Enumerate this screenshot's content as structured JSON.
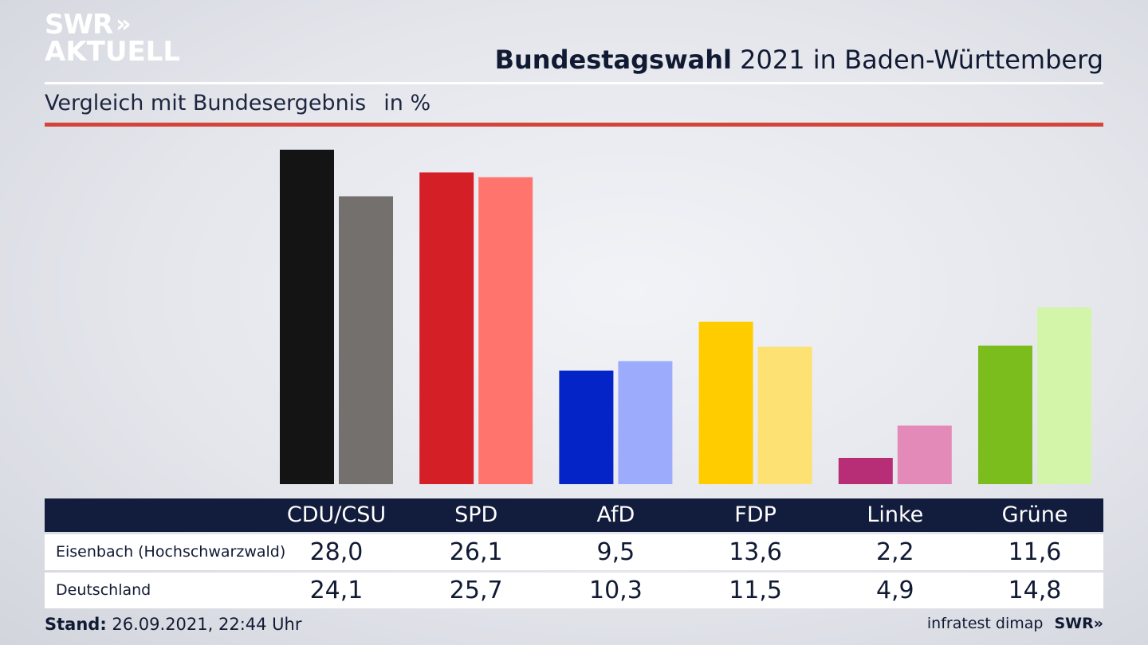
{
  "brand": {
    "line1": "SWR",
    "line2": "AKTUELL",
    "chevron": "»",
    "footer_logo": "SWR»"
  },
  "header": {
    "title_bold": "Bundestagswahl",
    "title_rest": " 2021 in Baden-Württemberg",
    "subtitle": "Vergleich mit Bundesergebnis",
    "unit": "in %"
  },
  "chart_data": {
    "type": "bar",
    "categories": [
      "CDU/CSU",
      "SPD",
      "AfD",
      "FDP",
      "Linke",
      "Grüne"
    ],
    "series": [
      {
        "name": "Eisenbach (Hochschwarzwald)",
        "values": [
          "28,0",
          "26,1",
          "9,5",
          "13,6",
          "2,2",
          "11,6"
        ],
        "colors": [
          "#141414",
          "#d31f25",
          "#0424c8",
          "#ffcc00",
          "#b72e76",
          "#7cbd1e"
        ]
      },
      {
        "name": "Deutschland",
        "values": [
          "24,1",
          "25,7",
          "10,3",
          "11,5",
          "4,9",
          "14,8"
        ],
        "colors": [
          "#73706e",
          "#ff746c",
          "#9dabfd",
          "#fde172",
          "#e38ab8",
          "#d3f5a9"
        ]
      }
    ],
    "ylim": [
      0,
      28.0
    ],
    "grid": false
  },
  "footer": {
    "stand_label": "Stand:",
    "stand_value": " 26.09.2021, 22:44 Uhr",
    "source": "infratest dimap"
  }
}
